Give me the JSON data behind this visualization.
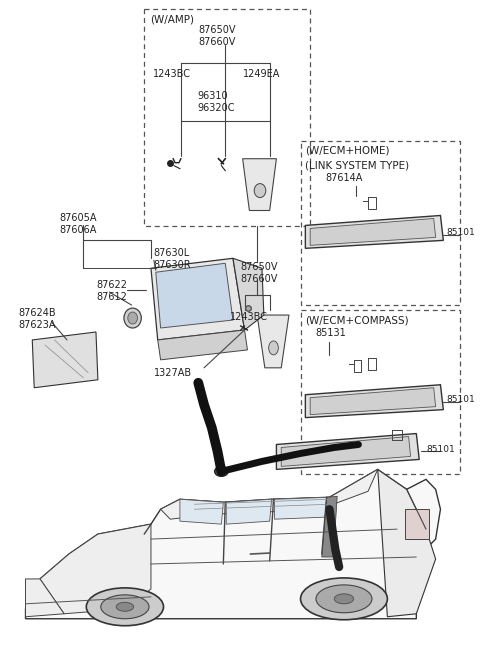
{
  "bg_color": "#ffffff",
  "line_color": "#444444",
  "text_color": "#222222",
  "figsize": [
    4.8,
    6.53
  ],
  "dpi": 100,
  "labels": {
    "wamp": "(W/AMP)",
    "wecm_home1": "(W/ECM+HOME)",
    "wecm_home2": "(LINK SYSTEM TYPE)",
    "wecm_compass": "(W/ECM+COMPASS)",
    "p87650V_top": "87650V\n87660V",
    "p1243BC_top": "1243BC",
    "p1249EA": "1249EA",
    "p96310": "96310\n96320C",
    "p87605A": "87605A\n87606A",
    "p87630L": "87630L\n87630R",
    "p87622": "87622\n87612",
    "p87624B": "87624B\n87623A",
    "p87650V_mid": "87650V\n87660V",
    "p1243BC_mid": "1243BC",
    "p1327AB": "1327AB",
    "p87614A": "87614A",
    "p85101_home": "85101",
    "p85131": "85131",
    "p85101_comp": "85101",
    "p85101_main": "85101"
  }
}
